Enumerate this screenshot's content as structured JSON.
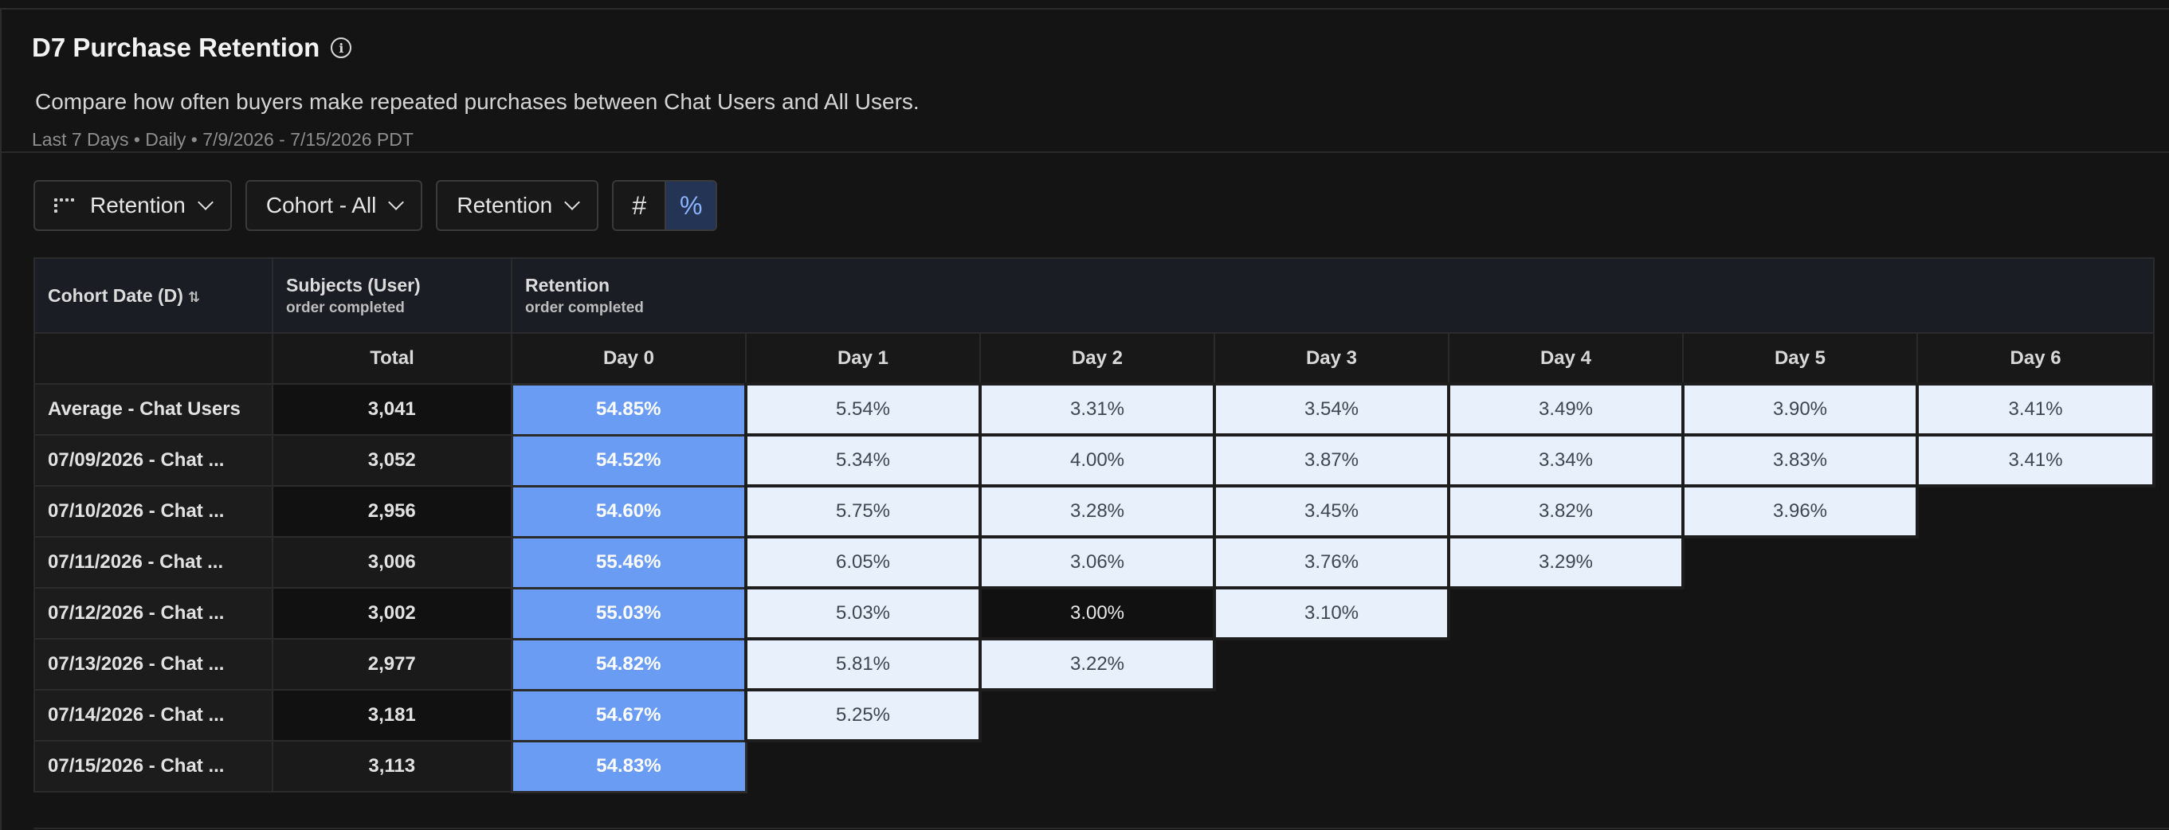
{
  "header": {
    "title": "D7 Purchase Retention",
    "subtitle": "Compare how often buyers make repeated purchases between Chat Users and All Users.",
    "meta": "Last 7 Days • Daily • 7/9/2026 - 7/15/2026 PDT"
  },
  "toolbar": {
    "view_label": "Retention",
    "cohort_label": "Cohort - All",
    "metric_label": "Retention",
    "number_toggle": "#",
    "percent_toggle": "%",
    "active_toggle": "percent"
  },
  "table": {
    "col_cohort": "Cohort Date (D)",
    "col_subjects": "Subjects (User)",
    "col_subjects_sub": "order completed",
    "col_retention": "Retention",
    "col_retention_sub": "order completed",
    "total_label": "Total",
    "days": [
      "Day 0",
      "Day 1",
      "Day 2",
      "Day 3",
      "Day 4",
      "Day 5",
      "Day 6"
    ],
    "rows": [
      {
        "label": "Average - Chat Users",
        "total": "3,041",
        "values": [
          "54.85%",
          "5.54%",
          "3.31%",
          "3.54%",
          "3.49%",
          "3.90%",
          "3.41%"
        ]
      },
      {
        "label": "07/09/2026 - Chat ...",
        "total": "3,052",
        "values": [
          "54.52%",
          "5.34%",
          "4.00%",
          "3.87%",
          "3.34%",
          "3.83%",
          "3.41%"
        ]
      },
      {
        "label": "07/10/2026 - Chat ...",
        "total": "2,956",
        "values": [
          "54.60%",
          "5.75%",
          "3.28%",
          "3.45%",
          "3.82%",
          "3.96%"
        ]
      },
      {
        "label": "07/11/2026 - Chat ...",
        "total": "3,006",
        "values": [
          "55.46%",
          "6.05%",
          "3.06%",
          "3.76%",
          "3.29%"
        ]
      },
      {
        "label": "07/12/2026 - Chat ...",
        "total": "3,002",
        "values": [
          "55.03%",
          "5.03%",
          "3.00%",
          "3.10%"
        ]
      },
      {
        "label": "07/13/2026 - Chat ...",
        "total": "2,977",
        "values": [
          "54.82%",
          "5.81%",
          "3.22%"
        ]
      },
      {
        "label": "07/14/2026 - Chat ...",
        "total": "3,181",
        "values": [
          "54.67%",
          "5.25%"
        ]
      },
      {
        "label": "07/15/2026 - Chat ...",
        "total": "3,113",
        "values": [
          "54.83%"
        ]
      }
    ]
  },
  "colors": {
    "day0_fill": "#6b9cf4",
    "cell_fill": "#e8f0fc",
    "background": "#141414"
  }
}
